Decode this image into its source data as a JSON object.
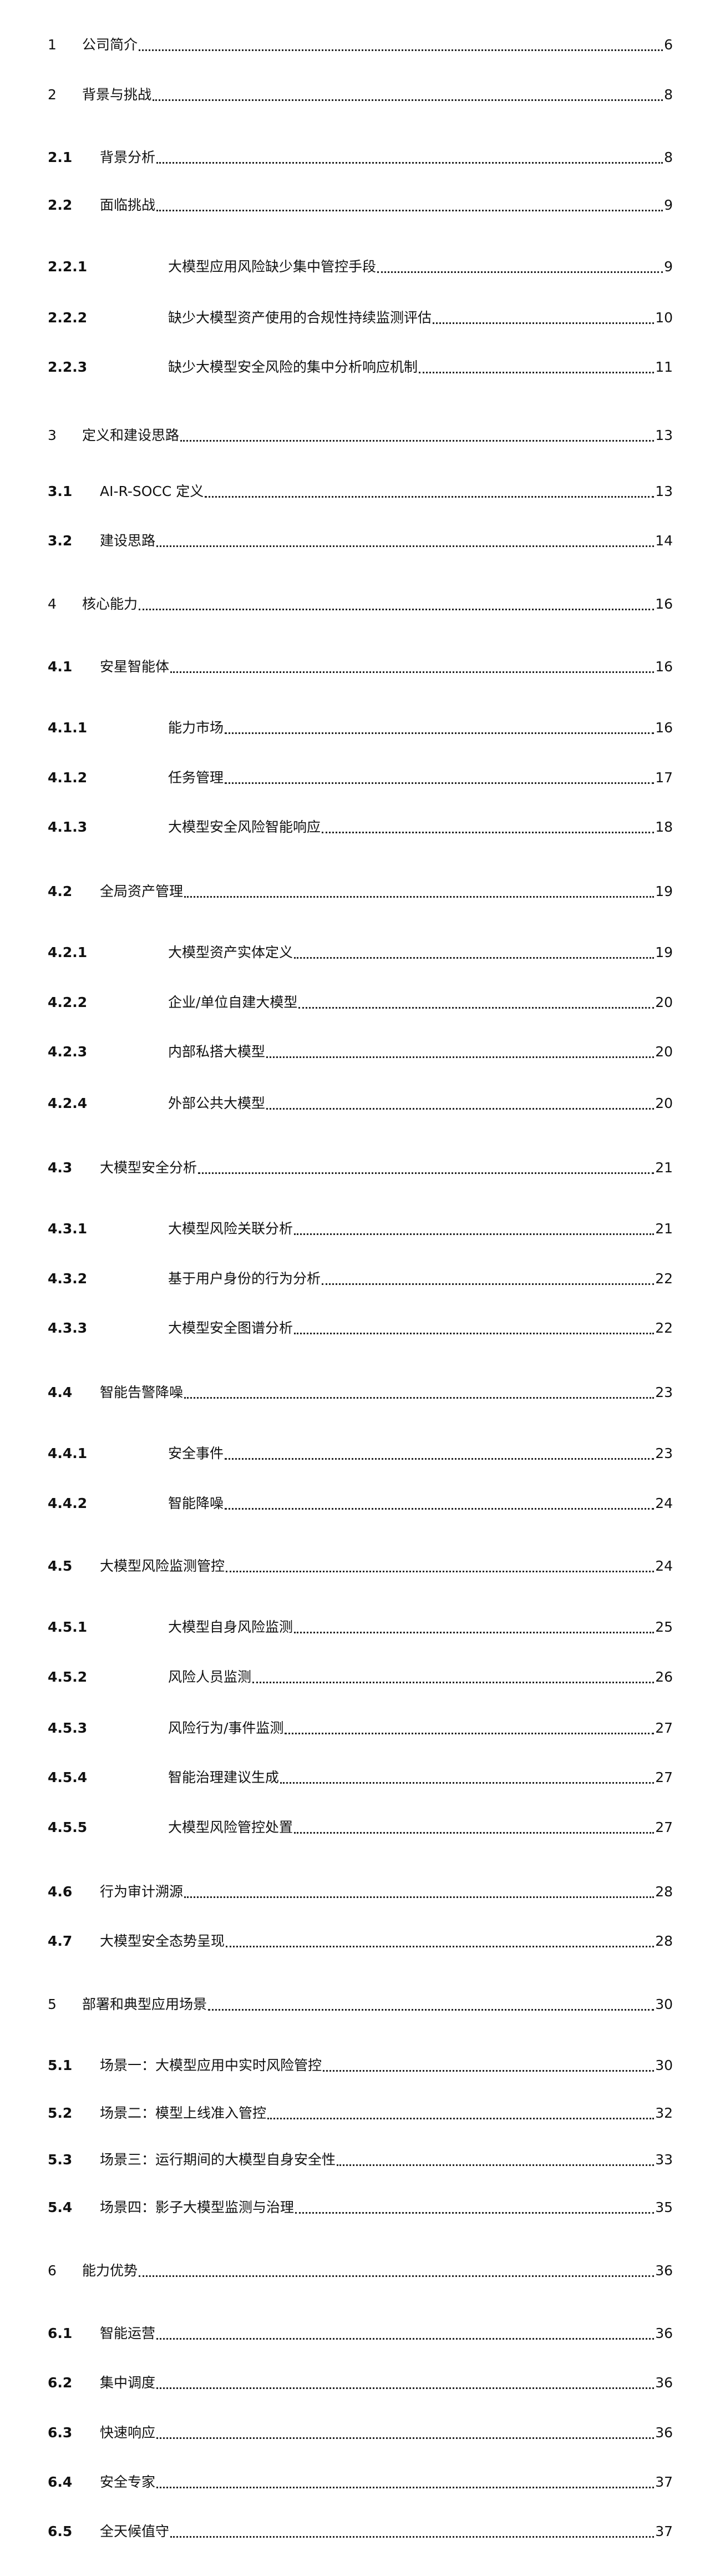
{
  "toc": [
    {
      "num": "1",
      "title": "公司简介",
      "page": "6",
      "level": 1
    },
    {
      "num": "2",
      "title": "背景与挑战",
      "page": "8",
      "level": 1
    },
    {
      "num": "2.1",
      "title": "背景分析",
      "page": "8",
      "level": 2
    },
    {
      "num": "2.2",
      "title": "面临挑战",
      "page": "9",
      "level": 2
    },
    {
      "num": "2.2.1",
      "title": "大模型应用风险缺少集中管控手段",
      "page": "9",
      "level": 3
    },
    {
      "num": "2.2.2",
      "title": "缺少大模型资产使用的合规性持续监测评估",
      "page": "10",
      "level": 3
    },
    {
      "num": "2.2.3",
      "title": "缺少大模型安全风险的集中分析响应机制",
      "page": "11",
      "level": 3
    },
    {
      "num": "3",
      "title": "定义和建设思路",
      "page": "13",
      "level": 1
    },
    {
      "num": "3.1",
      "title": "AI-R-SOCC 定义",
      "page": "13",
      "level": 2
    },
    {
      "num": "3.2",
      "title": "建设思路",
      "page": "14",
      "level": 2
    },
    {
      "num": "4",
      "title": "核心能力",
      "page": "16",
      "level": 1
    },
    {
      "num": "4.1",
      "title": "安星智能体",
      "page": "16",
      "level": 2
    },
    {
      "num": "4.1.1",
      "title": "能力市场",
      "page": "16",
      "level": 3
    },
    {
      "num": "4.1.2",
      "title": "任务管理",
      "page": "17",
      "level": 3
    },
    {
      "num": "4.1.3",
      "title": "大模型安全风险智能响应",
      "page": "18",
      "level": 3
    },
    {
      "num": "4.2",
      "title": "全局资产管理",
      "page": "19",
      "level": 2
    },
    {
      "num": "4.2.1",
      "title": "大模型资产实体定义",
      "page": "19",
      "level": 3
    },
    {
      "num": "4.2.2",
      "title": "企业/单位自建大模型",
      "page": "20",
      "level": 3
    },
    {
      "num": "4.2.3",
      "title": "内部私搭大模型",
      "page": "20",
      "level": 3
    },
    {
      "num": "4.2.4",
      "title": "外部公共大模型",
      "page": "20",
      "level": 3
    },
    {
      "num": "4.3",
      "title": "大模型安全分析",
      "page": "21",
      "level": 2
    },
    {
      "num": "4.3.1",
      "title": "大模型风险关联分析",
      "page": "21",
      "level": 3
    },
    {
      "num": "4.3.2",
      "title": "基于用户身份的行为分析",
      "page": "22",
      "level": 3
    },
    {
      "num": "4.3.3",
      "title": "大模型安全图谱分析",
      "page": "22",
      "level": 3
    },
    {
      "num": "4.4",
      "title": "智能告警降噪",
      "page": "23",
      "level": 2
    },
    {
      "num": "4.4.1",
      "title": "安全事件",
      "page": "23",
      "level": 3
    },
    {
      "num": "4.4.2",
      "title": "智能降噪",
      "page": "24",
      "level": 3
    },
    {
      "num": "4.5",
      "title": "大模型风险监测管控",
      "page": "24",
      "level": 2
    },
    {
      "num": "4.5.1",
      "title": "大模型自身风险监测",
      "page": "25",
      "level": 3
    },
    {
      "num": "4.5.2",
      "title": "风险人员监测",
      "page": "26",
      "level": 3
    },
    {
      "num": "4.5.3",
      "title": "风险行为/事件监测",
      "page": "27",
      "level": 3
    },
    {
      "num": "4.5.4",
      "title": "智能治理建议生成",
      "page": "27",
      "level": 3
    },
    {
      "num": "4.5.5",
      "title": "大模型风险管控处置",
      "page": "27",
      "level": 3
    },
    {
      "num": "4.6",
      "title": "行为审计溯源",
      "page": "28",
      "level": 2
    },
    {
      "num": "4.7",
      "title": "大模型安全态势呈现",
      "page": "28",
      "level": 2
    },
    {
      "num": "5",
      "title": "部署和典型应用场景",
      "page": "30",
      "level": 1
    },
    {
      "num": "5.1",
      "title": "场景一：大模型应用中实时风险管控",
      "page": "30",
      "level": 2
    },
    {
      "num": "5.2",
      "title": "场景二：模型上线准入管控",
      "page": "32",
      "level": 2
    },
    {
      "num": "5.3",
      "title": "场景三：运行期间的大模型自身安全性",
      "page": "33",
      "level": 2
    },
    {
      "num": "5.4",
      "title": "场景四：影子大模型监测与治理",
      "page": "35",
      "level": 2
    },
    {
      "num": "6",
      "title": "能力优势",
      "page": "36",
      "level": 1
    },
    {
      "num": "6.1",
      "title": "智能运营",
      "page": "36",
      "level": 2
    },
    {
      "num": "6.2",
      "title": "集中调度",
      "page": "36",
      "level": 2
    },
    {
      "num": "6.3",
      "title": "快速响应",
      "page": "36",
      "level": 2
    },
    {
      "num": "6.4",
      "title": "安全专家",
      "page": "37",
      "level": 2
    },
    {
      "num": "6.5",
      "title": "全天候值守",
      "page": "37",
      "level": 2
    }
  ]
}
